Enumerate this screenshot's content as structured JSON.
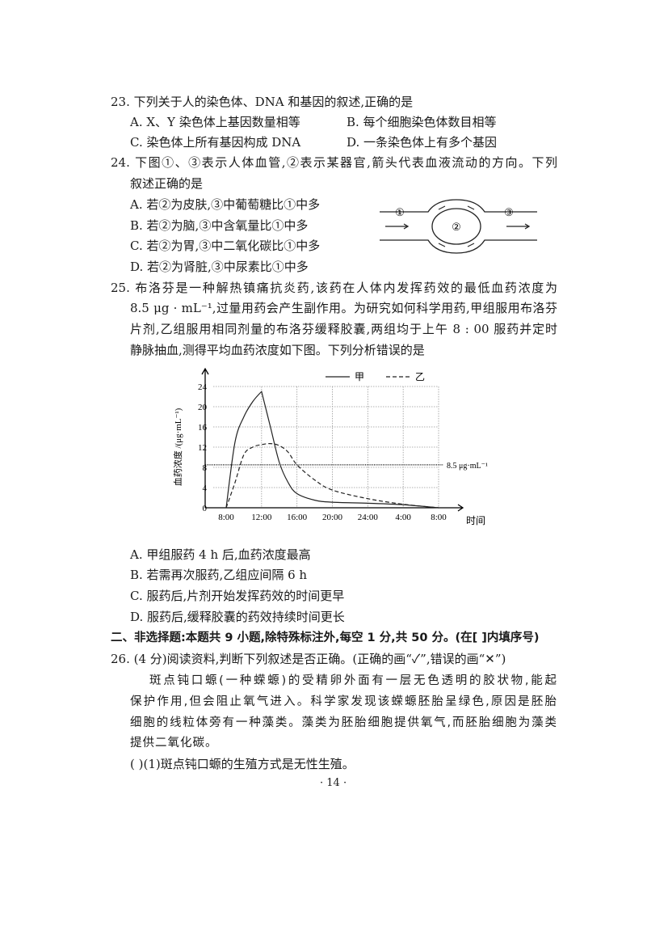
{
  "q23": {
    "stem": "23. 下列关于人的染色体、DNA 和基因的叙述,正确的是",
    "A": "A. X、Y 染色体上基因数量相等",
    "B": "B. 每个细胞染色体数目相等",
    "C": "C. 染色体上所有基因构成 DNA",
    "D": "D. 一条染色体上有多个基因"
  },
  "q24": {
    "stem1": "24. 下图①、③表示人体血管,②表示某器官,箭头代表血液流动的方向。下列",
    "stem2": "叙述正确的是",
    "A": "A. 若②为皮肤,③中葡萄糖比①中多",
    "B": "B. 若②为脑,③中含氧量比①中多",
    "C": "C. 若②为胃,③中二氧化碳比①中多",
    "D": "D. 若②为肾脏,③中尿素比①中多",
    "diagram": {
      "label1": "①",
      "label2": "②",
      "label3": "③"
    }
  },
  "q25": {
    "stem1": "25. 布洛芬是一种解热镇痛抗炎药,该药在人体内发挥药效的最低血药浓度为",
    "stem2": "8.5 μg · mL⁻¹,过量用药会产生副作用。为研究如何科学用药,甲组服用布洛芬",
    "stem3": "片剂,乙组服用相同剂量的布洛芬缓释胶囊,两组均于上午 8 : 00 服药并定时",
    "stem4": "静脉抽血,测得平均血药浓度如下图。下列分析错误的是",
    "A": "A. 甲组服药 4 h 后,血药浓度最高",
    "B": "B. 若需再次服药,乙组应间隔 6 h",
    "C": "C. 服药后,片剂开始发挥药效的时间更早",
    "D": "D. 服药后,缓释胶囊的药效持续时间更长"
  },
  "chart_data": {
    "type": "line",
    "ylabel": "血药浓度 /(μg·mL⁻¹)",
    "xlabel": "时间",
    "x_ticks": [
      "8:00",
      "12:00",
      "16:00",
      "20:00",
      "24:00",
      "4:00",
      "8:00"
    ],
    "y_ticks": [
      "0",
      "4",
      "8",
      "12",
      "16",
      "20",
      "24"
    ],
    "ylim": [
      0,
      24
    ],
    "grid": true,
    "legend_position": "top-right",
    "threshold": {
      "value": 8.5,
      "label": "8.5 μg·mL⁻¹"
    },
    "series": [
      {
        "name": "甲",
        "style": "solid",
        "x": [
          "8:00",
          "9:00",
          "10:00",
          "11:00",
          "12:00",
          "13:00",
          "14:00",
          "15:00",
          "16:00",
          "18:00",
          "20:00",
          "24:00",
          "4:00",
          "8:00"
        ],
        "values": [
          0,
          13,
          18,
          21,
          23,
          16,
          9,
          5,
          2.8,
          1.5,
          1.1,
          0.9,
          0.6,
          0
        ]
      },
      {
        "name": "乙",
        "style": "dashed",
        "x": [
          "8:00",
          "9:00",
          "10:00",
          "11:00",
          "12:00",
          "13:00",
          "14:00",
          "15:00",
          "16:00",
          "18:00",
          "20:00",
          "24:00",
          "4:00",
          "8:00"
        ],
        "values": [
          0,
          5,
          10.5,
          12,
          12.5,
          12.7,
          12.3,
          11,
          8.5,
          5.5,
          3.5,
          1.8,
          0.7,
          0
        ]
      }
    ]
  },
  "section2": "二、非选择题:本题共 9 小题,除特殊标注外,每空 1 分,共 50 分。(在[    ]内填序号)",
  "q26": {
    "stem": "26. (4 分)阅读资料,判断下列叙述是否正确。(正确的画“✓”,错误的画“✕”)",
    "p1": "斑点钝口螈(一种蝾螈)的受精卵外面有一层无色透明的胶状物,能起",
    "p2": "保护作用,但会阻止氧气进入。科学家发现该蝾螈胚胎呈绿色,原因是胚胎",
    "p3": "细胞的线粒体旁有一种藻类。藻类为胚胎细胞提供氧气,而胚胎细胞为藻类",
    "p4": "提供二氧化碳。",
    "item1": "(        )(1)斑点钝口螈的生殖方式是无性生殖。"
  },
  "page_number": "· 14 ·"
}
